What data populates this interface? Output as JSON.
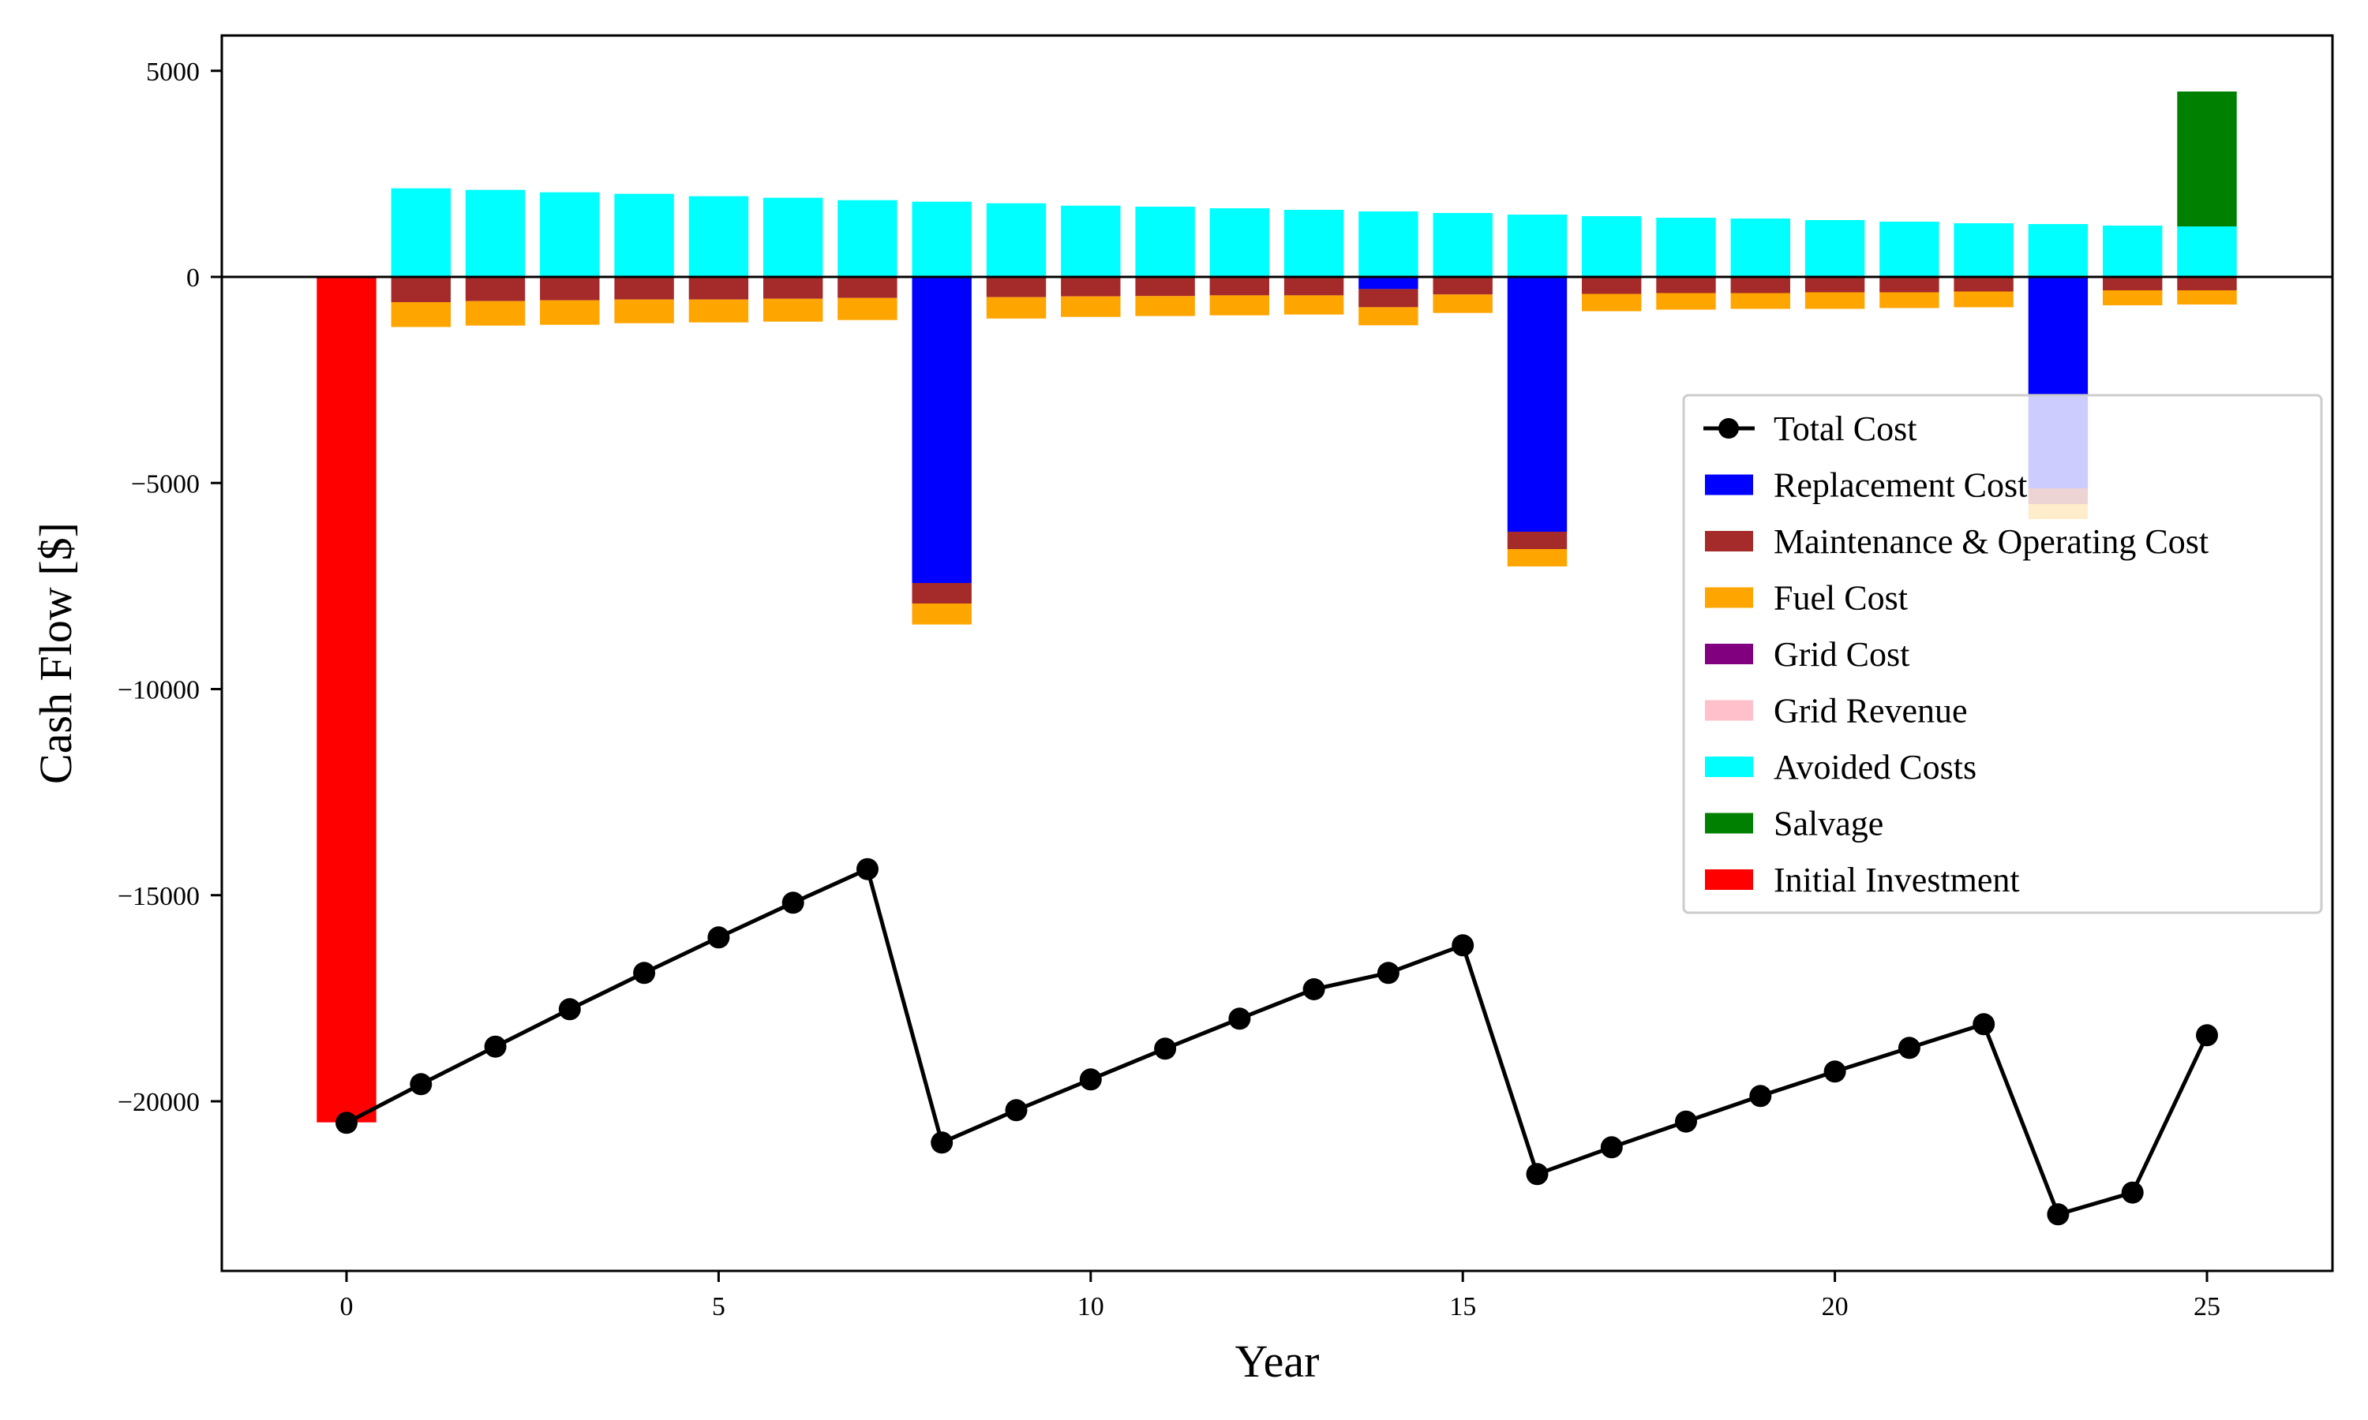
{
  "chart_data": {
    "type": "bar",
    "subtype": "stacked-bar-with-line",
    "title": "",
    "xlabel": "Year",
    "ylabel": "Cash Flow [$]",
    "xlim": [
      -1.9,
      26.7
    ],
    "ylim": [
      -24300,
      5850
    ],
    "xticks": [
      0,
      5,
      10,
      15,
      20,
      25
    ],
    "xtick_labels": [
      "0",
      "5",
      "10",
      "15",
      "20",
      "25"
    ],
    "yticks": [
      5000,
      0,
      -5000,
      -10000,
      -15000,
      -20000
    ],
    "ytick_labels": [
      "5000",
      "0",
      "−5000",
      "−10000",
      "−15000",
      "−20000"
    ],
    "grid": false,
    "zero_line": true,
    "legend_position": "center-right",
    "x": [
      0,
      1,
      2,
      3,
      4,
      5,
      6,
      7,
      8,
      9,
      10,
      11,
      12,
      13,
      14,
      15,
      16,
      17,
      18,
      19,
      20,
      21,
      22,
      23,
      24,
      25
    ],
    "series": [
      {
        "name": "Replacement Cost",
        "kind": "bar",
        "color": "#0000ff",
        "values": [
          0,
          0,
          0,
          0,
          0,
          0,
          0,
          0,
          -7426,
          0,
          0,
          0,
          0,
          0,
          -294,
          0,
          -6182,
          0,
          0,
          0,
          0,
          0,
          0,
          -5129,
          0,
          0
        ]
      },
      {
        "name": "Maintenance & Operating Cost",
        "kind": "bar",
        "color": "#a52a2a",
        "values": [
          0,
          -612,
          -587,
          -568,
          -549,
          -549,
          -530,
          -511,
          -498,
          -491,
          -472,
          -466,
          -447,
          -447,
          -440,
          -427,
          -421,
          -412,
          -393,
          -393,
          -374,
          -374,
          -355,
          -383,
          -325,
          -325
        ]
      },
      {
        "name": "Fuel Cost",
        "kind": "bar",
        "color": "#ffa500",
        "values": [
          0,
          -603,
          -594,
          -594,
          -574,
          -555,
          -555,
          -536,
          -510,
          -518,
          -498,
          -485,
          -485,
          -466,
          -438,
          -448,
          -421,
          -421,
          -402,
          -382,
          -401,
          -382,
          -382,
          -364,
          -364,
          -345
        ]
      },
      {
        "name": "Grid Cost",
        "kind": "bar",
        "color": "#800080",
        "values": [
          0,
          0,
          0,
          0,
          0,
          0,
          0,
          0,
          0,
          0,
          0,
          0,
          0,
          0,
          0,
          0,
          0,
          0,
          0,
          0,
          0,
          0,
          0,
          0,
          0,
          0
        ]
      },
      {
        "name": "Grid Revenue",
        "kind": "bar",
        "color": "#ffc0cb",
        "values": [
          0,
          0,
          0,
          0,
          0,
          0,
          0,
          0,
          0,
          0,
          0,
          0,
          0,
          0,
          0,
          0,
          0,
          0,
          0,
          0,
          0,
          0,
          0,
          0,
          0,
          0
        ]
      },
      {
        "name": "Avoided Costs",
        "kind": "bar",
        "color": "#00ffff",
        "values": [
          0,
          2150,
          2111,
          2054,
          2016,
          1958,
          1920,
          1862,
          1824,
          1786,
          1728,
          1703,
          1665,
          1627,
          1589,
          1550,
          1512,
          1474,
          1436,
          1417,
          1378,
          1340,
          1302,
          1283,
          1244,
          1225
        ]
      },
      {
        "name": "Salvage",
        "kind": "bar",
        "color": "#008000",
        "values": [
          0,
          0,
          0,
          0,
          0,
          0,
          0,
          0,
          0,
          0,
          0,
          0,
          0,
          0,
          0,
          0,
          0,
          0,
          0,
          0,
          0,
          0,
          0,
          0,
          0,
          3273
        ]
      },
      {
        "name": "Initial Investment",
        "kind": "bar",
        "color": "#ff0000",
        "values": [
          -20511,
          0,
          0,
          0,
          0,
          0,
          0,
          0,
          0,
          0,
          0,
          0,
          0,
          0,
          0,
          0,
          0,
          0,
          0,
          0,
          0,
          0,
          0,
          0,
          0,
          0
        ]
      },
      {
        "name": "Total Cost",
        "kind": "line",
        "marker": "circle",
        "color": "#000000",
        "values": [
          -20523,
          -19585,
          -18673,
          -17767,
          -16886,
          -16025,
          -15183,
          -14367,
          -21001,
          -20217,
          -19470,
          -18724,
          -17997,
          -17282,
          -16886,
          -16216,
          -21767,
          -21116,
          -20491,
          -19872,
          -19279,
          -18705,
          -18131,
          -22743,
          -22215,
          -18399
        ]
      }
    ],
    "legend": [
      "Total Cost",
      "Replacement Cost",
      "Maintenance & Operating Cost",
      "Fuel Cost",
      "Grid Cost",
      "Grid Revenue",
      "Avoided Costs",
      "Salvage",
      "Initial Investment"
    ]
  }
}
